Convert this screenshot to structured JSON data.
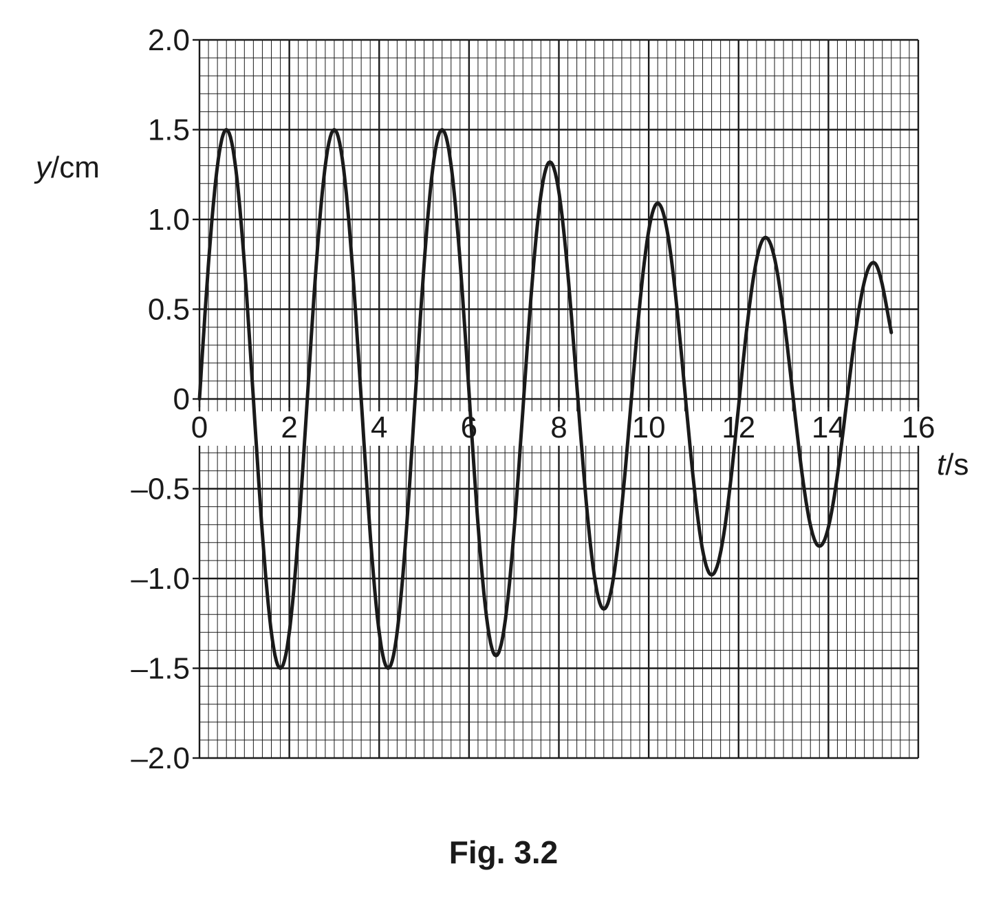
{
  "caption": "Fig. 3.2",
  "chart_data": {
    "type": "line",
    "xlabel": {
      "var": "t",
      "unit": "s"
    },
    "ylabel": {
      "var": "y",
      "unit": "cm"
    },
    "xlim": [
      0,
      16
    ],
    "ylim": [
      -2.0,
      2.0
    ],
    "grid": true,
    "minor_divisions": 10,
    "xticks": [
      0,
      2,
      4,
      6,
      8,
      10,
      12,
      14,
      16
    ],
    "xtick_labels": [
      "0",
      "2",
      "4",
      "6",
      "8",
      "10",
      "12",
      "14",
      "16"
    ],
    "yticks": [
      2.0,
      1.5,
      1.0,
      0.5,
      0,
      -0.5,
      -1.0,
      -1.5,
      -2.0
    ],
    "ytick_labels": [
      "2.0",
      "1.5",
      "1.0",
      "0.5",
      "0",
      "–0.5",
      "–1.0",
      "–1.5",
      "–2.0"
    ],
    "line_color": "#1a1a1a",
    "series": [
      {
        "extrema": [
          {
            "t": 0.0,
            "y": 0
          },
          {
            "t": 0.6,
            "y": 1.5
          },
          {
            "t": 1.8,
            "y": -1.5
          },
          {
            "t": 3.0,
            "y": 1.5
          },
          {
            "t": 4.2,
            "y": -1.5
          },
          {
            "t": 5.4,
            "y": 1.5
          },
          {
            "t": 6.6,
            "y": -1.43
          },
          {
            "t": 7.8,
            "y": 1.32
          },
          {
            "t": 9.0,
            "y": -1.17
          },
          {
            "t": 10.2,
            "y": 1.09
          },
          {
            "t": 11.4,
            "y": -0.98
          },
          {
            "t": 12.6,
            "y": 0.9
          },
          {
            "t": 13.8,
            "y": -0.82
          },
          {
            "t": 15.0,
            "y": 0.76
          },
          {
            "t": 15.4,
            "y": 0.37
          }
        ]
      }
    ]
  }
}
